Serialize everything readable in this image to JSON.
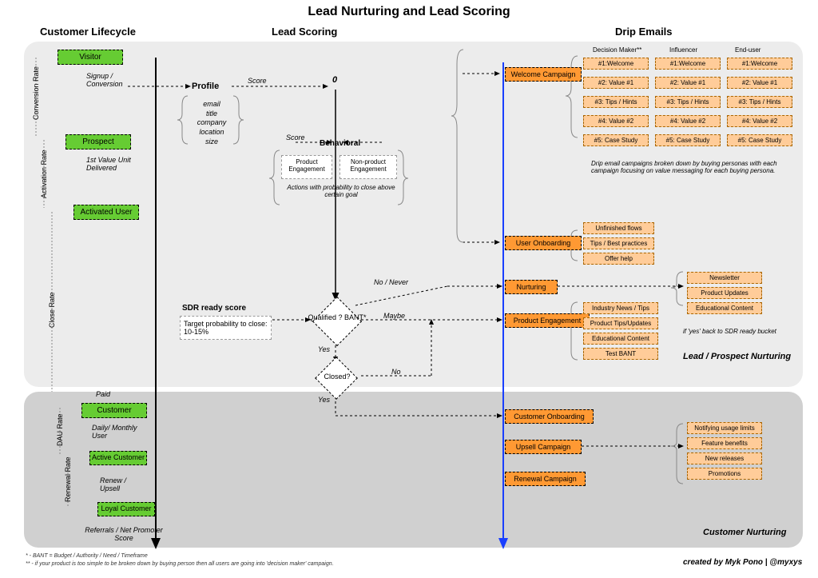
{
  "title": "Lead Nurturing and Lead Scoring",
  "columns": {
    "lifecycle": "Customer Lifecycle",
    "scoring": "Lead Scoring",
    "drip": "Drip Emails"
  },
  "lifecycle": {
    "stages": [
      "Visitor",
      "Prospect",
      "Activated User",
      "Customer",
      "Active Customer",
      "Loyal Customer"
    ],
    "rates": [
      "Conversion Rate",
      "Activation Rate",
      "Close Rate",
      "DAU Rate",
      "Renewal Rate"
    ],
    "transitions": {
      "t1": "Signup / Conversion",
      "t2": "1st Value Unit Delivered",
      "t3": "Paid",
      "t4": "Daily/ Monthly User",
      "t5": "Renew / Upsell",
      "t6": "Referrals / Net Promoter Score"
    }
  },
  "scoring": {
    "profile_label": "Profile",
    "profile_items": "email\ntitle\ncompany\nlocation\nsize",
    "score_label": "Score",
    "zero": "0",
    "behavioral_label": "Behavioral",
    "behavioral_left": "Product Engagement",
    "behavioral_right": "Non-product Engagement",
    "behavioral_note": "Actions with probability to close above certain goal",
    "sdr_label": "SDR ready score",
    "sdr_target": "Target probability to close: 10-15%",
    "decision1": "Qualified ? BANT*",
    "decision2": "Closed?",
    "edges": {
      "no_never": "No / Never",
      "maybe": "Maybe",
      "yes": "Yes",
      "no": "No"
    }
  },
  "drip": {
    "campaigns": {
      "welcome": "Welcome Campaign",
      "onboard": "User Onboarding",
      "nurture": "Nurturing",
      "engage": "Product Engagement",
      "cust_onboard": "Customer Onboarding",
      "upsell": "Upsell Campaign",
      "renewal": "Renewal Campaign"
    },
    "persona_headers": [
      "Decision Maker**",
      "Influencer",
      "End-user"
    ],
    "welcome_emails": [
      "#1:Welcome",
      "#2: Value #1",
      "#3: Tips / Hints",
      "#4: Value #2",
      "#5: Case Study"
    ],
    "welcome_note": "Drip email campaigns broken down by buying personas with each campaign focusing on value messaging for each buying persona.",
    "onboard_items": [
      "Unfinished flows",
      "Tips / Best practices",
      "Offer help"
    ],
    "nurture_items": [
      "Newsletter",
      "Product Updates",
      "Educational Content"
    ],
    "engage_items": [
      "Industry News / Tips",
      "Product Tips/Updates",
      "Educational Content",
      "Test BANT"
    ],
    "engage_note": "if 'yes' back to SDR ready bucket",
    "upsell_items": [
      "Notifying usage limits",
      "Feature benefits",
      "New releases",
      "Promotions"
    ],
    "section1_label": "Lead / Prospect Nurturing",
    "section2_label": "Customer Nurturing"
  },
  "footnotes": {
    "f1": "* - BANT = Budget / Authority / Need / Timeframe",
    "f2": "** - if your product is too simple to be broken down by buying person then all users are going into 'decision maker' campaign."
  },
  "credit": "created by Myk Pono | @myxys",
  "colors": {
    "green": "#66cc33",
    "orange": "#ff9933",
    "light_orange": "#ffcc99",
    "panel_top": "#ececec",
    "panel_bottom": "#d0d0d0",
    "blue_line": "#1a3fff"
  }
}
